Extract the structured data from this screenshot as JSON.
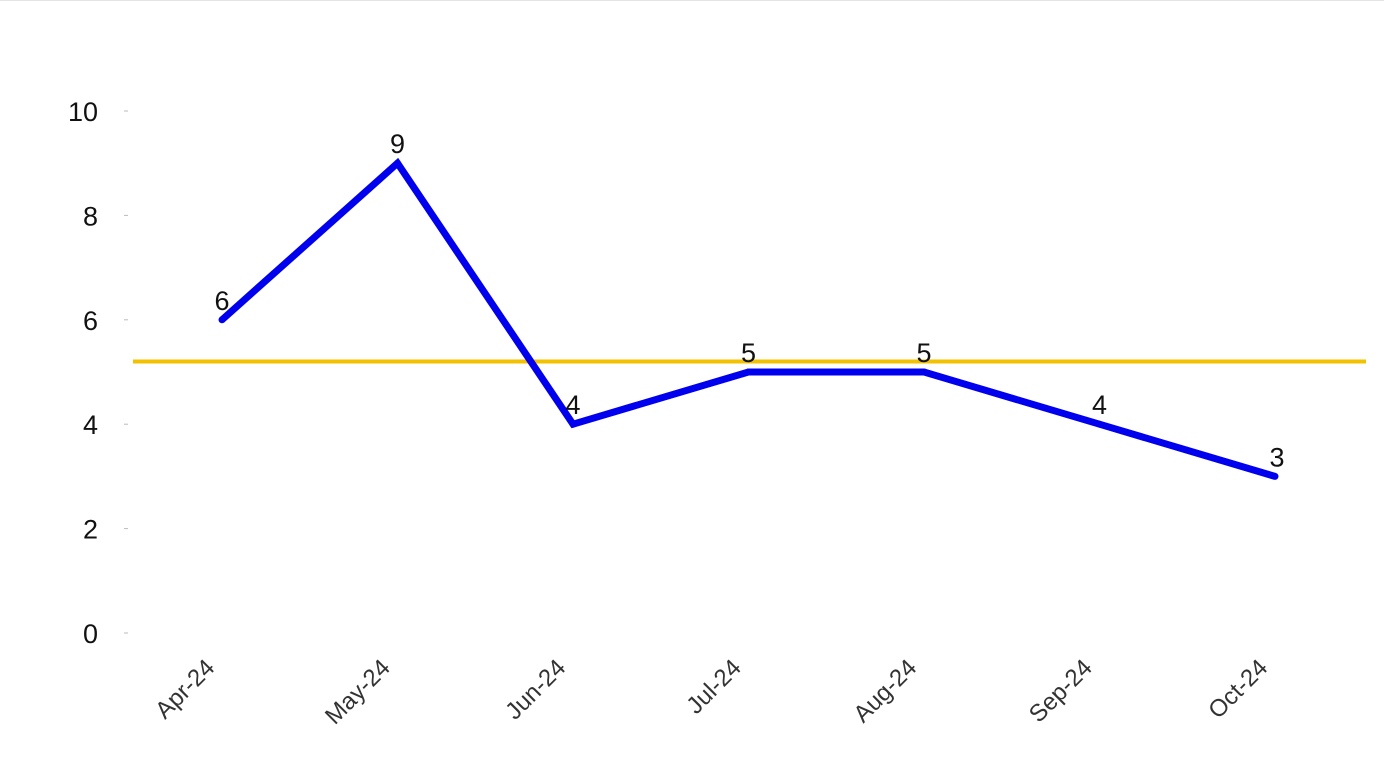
{
  "chart_data": {
    "type": "line",
    "categories": [
      "Apr-24",
      "May-24",
      "Jun-24",
      "Jul-24",
      "Aug-24",
      "Sep-24",
      "Oct-24"
    ],
    "series": [
      {
        "values": [
          6,
          9,
          4,
          5,
          5,
          4,
          3
        ],
        "color": "#0000ee"
      }
    ],
    "reference_line": {
      "value": 5.2,
      "color": "#f2c200"
    },
    "data_labels": [
      "6",
      "9",
      "4",
      "5",
      "5",
      "4",
      "3"
    ],
    "ylim": [
      0,
      10
    ],
    "y_ticks": [
      0,
      2,
      4,
      6,
      8,
      10
    ],
    "y_tick_labels": [
      "0",
      "2",
      "4",
      "6",
      "8",
      "10"
    ],
    "grid": false,
    "legend": "none"
  }
}
